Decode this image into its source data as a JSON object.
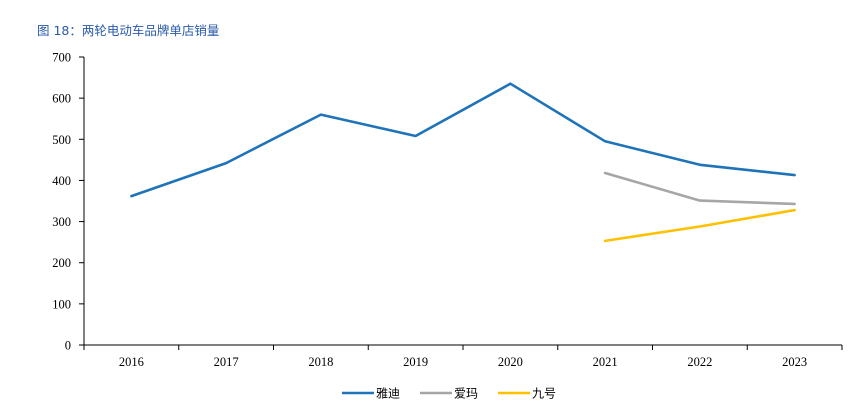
{
  "figure": {
    "title": "图 18：两轮电动车品牌单店销量"
  },
  "chart_data": {
    "type": "line",
    "title": "图 18：两轮电动车品牌单店销量",
    "xlabel": "",
    "ylabel": "",
    "categories": [
      "2016",
      "2017",
      "2018",
      "2019",
      "2020",
      "2021",
      "2022",
      "2023"
    ],
    "ylim": [
      0,
      700
    ],
    "yticks": [
      0,
      100,
      200,
      300,
      400,
      500,
      600,
      700
    ],
    "grid": false,
    "legend_position": "bottom-center",
    "series": [
      {
        "name": "雅迪",
        "color": "#1f73b8",
        "values": [
          362,
          442,
          560,
          508,
          635,
          495,
          438,
          413
        ]
      },
      {
        "name": "爱玛",
        "color": "#a6a6a6",
        "values": [
          null,
          null,
          null,
          null,
          null,
          418,
          351,
          343
        ]
      },
      {
        "name": "九号",
        "color": "#ffc000",
        "values": [
          null,
          null,
          null,
          null,
          null,
          253,
          288,
          328
        ]
      }
    ]
  }
}
